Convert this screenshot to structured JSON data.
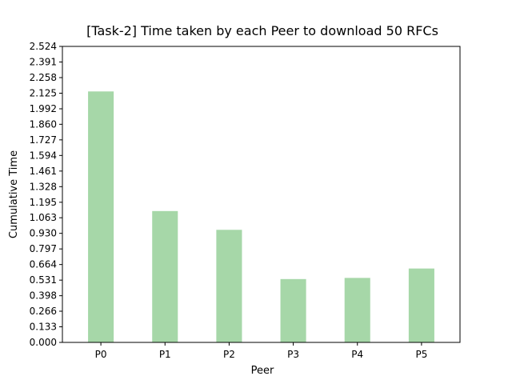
{
  "chart_data": {
    "type": "bar",
    "title": "[Task-2] Time taken by each Peer to download 50 RFCs",
    "xlabel": "Peer",
    "ylabel": "Cumulative Time",
    "categories": [
      "P0",
      "P1",
      "P2",
      "P3",
      "P4",
      "P5"
    ],
    "values": [
      2.14,
      1.12,
      0.96,
      0.54,
      0.55,
      0.63
    ],
    "ylim": [
      0.0,
      2.524
    ],
    "yticks": [
      "0.000",
      "0.133",
      "0.266",
      "0.398",
      "0.531",
      "0.664",
      "0.797",
      "0.930",
      "1.063",
      "1.195",
      "1.328",
      "1.461",
      "1.594",
      "1.727",
      "1.860",
      "1.992",
      "2.125",
      "2.258",
      "2.391",
      "2.524"
    ],
    "bar_color": "#a6d7a8",
    "grid": false
  }
}
